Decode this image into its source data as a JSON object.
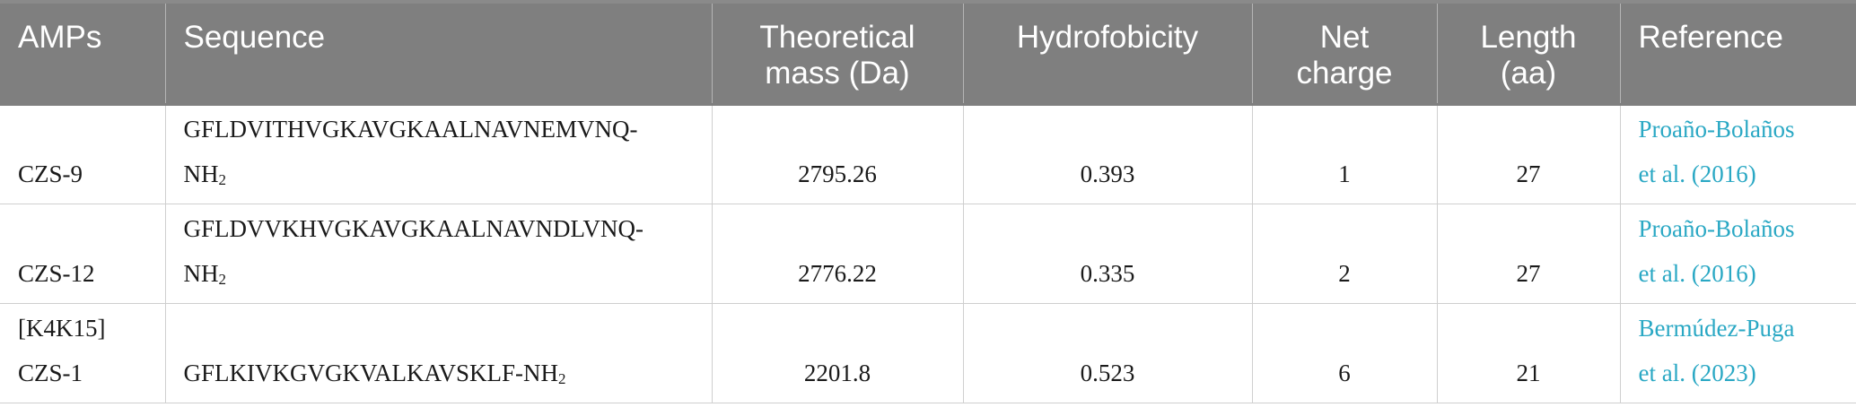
{
  "headers": {
    "amps": "AMPs",
    "sequence": "Sequence",
    "mass_line1": "Theoretical",
    "mass_line2": "mass (Da)",
    "hydro": "Hydrofobicity",
    "charge_line1": "Net",
    "charge_line2": "charge",
    "length_line1": "Length",
    "length_line2": "(aa)",
    "reference": "Reference"
  },
  "rows": [
    {
      "amp_line1": "CZS-9",
      "seq_line1": "GFLDVITHVGKAVGKAALNAVNEMVNQ-",
      "seq_line2": "NH",
      "seq_sub": "2",
      "mass": "2795.26",
      "hydro": "0.393",
      "charge": "1",
      "length": "27",
      "ref_line1": "Proaño-Bolaños",
      "ref_line2": "et al. (2016)"
    },
    {
      "amp_line1": "CZS-12",
      "seq_line1": "GFLDVVKHVGKAVGKAALNAVNDLVNQ-",
      "seq_line2": "NH",
      "seq_sub": "2",
      "mass": "2776.22",
      "hydro": "0.335",
      "charge": "2",
      "length": "27",
      "ref_line1": "Proaño-Bolaños",
      "ref_line2": "et al. (2016)"
    },
    {
      "amp_line1": "[K4K15]",
      "amp_line2": "CZS-1",
      "seq_line1": "GFLKIVKGVGKVALKAVSKLF-NH",
      "seq_sub": "2",
      "mass": "2201.8",
      "hydro": "0.523",
      "charge": "6",
      "length": "21",
      "ref_line1": "Bermúdez-Puga",
      "ref_line2": "et al. (2023)"
    }
  ],
  "colors": {
    "header_bg": "#7f7f7f",
    "header_text": "#ffffff",
    "reference_link": "#2aa8c4",
    "grid": "#cfcfcf"
  }
}
